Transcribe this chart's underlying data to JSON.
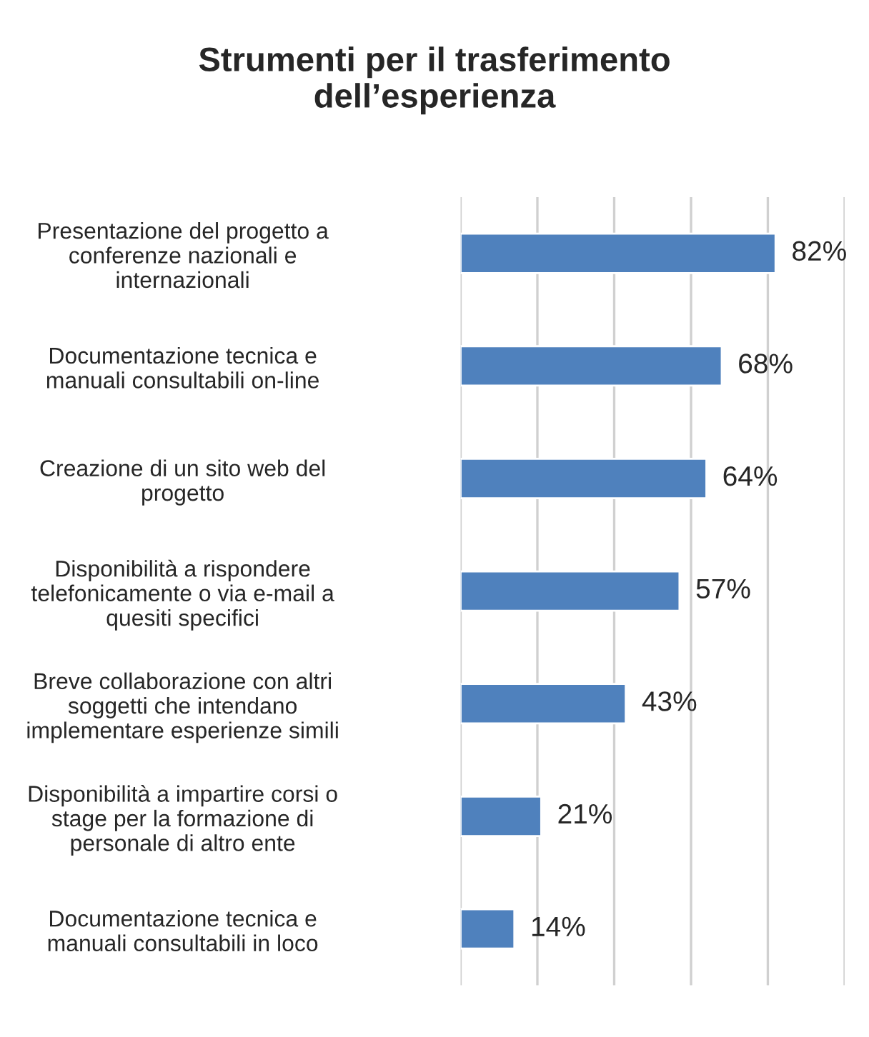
{
  "chart_data": {
    "type": "bar",
    "orientation": "horizontal",
    "title": "Strumenti per il trasferimento\ndell’esperienza",
    "categories": [
      "Presentazione del progetto a\nconferenze nazionali e\ninternazionali",
      "Documentazione tecnica e\nmanuali consultabili on-line",
      "Creazione di un sito web del\nprogetto",
      "Disponibilità a rispondere\ntelefonicamente o via e-mail a\nquesiti specifici",
      "Breve collaborazione con altri\nsoggetti che intendano\nimplementare esperienze simili",
      "Disponibilità a impartire corsi o\nstage per la formazione di\npersonale di altro ente",
      "Documentazione tecnica e\nmanuali consultabili in loco"
    ],
    "values": [
      82,
      68,
      64,
      57,
      43,
      21,
      14
    ],
    "value_labels": [
      "82%",
      "68%",
      "64%",
      "57%",
      "43%",
      "21%",
      "14%"
    ],
    "color": "#4f81bd",
    "xlim": [
      0,
      100
    ],
    "xticks": [
      {
        "value": 0,
        "label": null
      },
      {
        "value": 20,
        "label": null
      },
      {
        "value": 40,
        "label": null
      },
      {
        "value": 60,
        "label": null
      },
      {
        "value": 80,
        "label": null
      },
      {
        "value": 100,
        "label": null
      }
    ],
    "tick_labels": "y",
    "grid": "x",
    "legend": false
  }
}
